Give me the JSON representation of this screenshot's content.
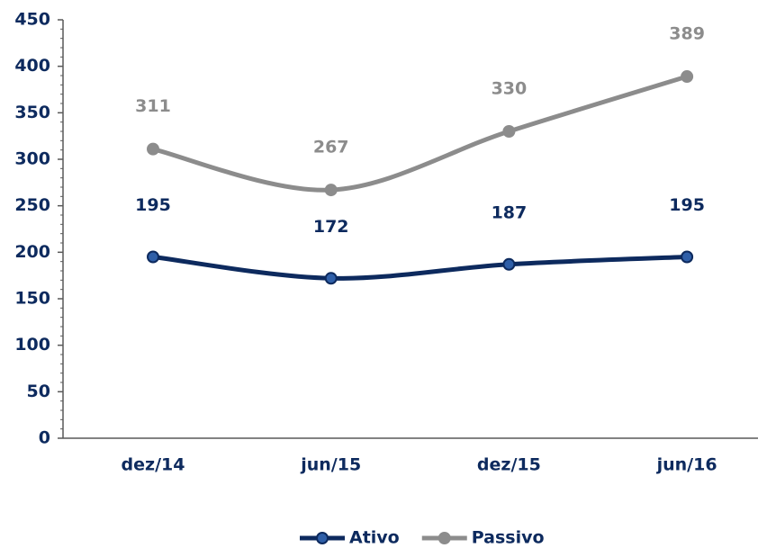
{
  "chart_data": {
    "type": "line",
    "categories": [
      "dez/14",
      "jun/15",
      "dez/15",
      "jun/16"
    ],
    "series": [
      {
        "name": "Ativo",
        "color": "#0d2a5e",
        "marker_color": "#2f5fa8",
        "values": [
          195,
          172,
          187,
          195
        ]
      },
      {
        "name": "Passivo",
        "color": "#8c8c8c",
        "marker_color": "#8c8c8c",
        "values": [
          311,
          267,
          330,
          389
        ]
      }
    ],
    "ylim": [
      0,
      450
    ],
    "yticks": [
      0,
      50,
      100,
      150,
      200,
      250,
      300,
      350,
      400,
      450
    ],
    "grid": false,
    "smooth": true,
    "legend": "bottom"
  }
}
